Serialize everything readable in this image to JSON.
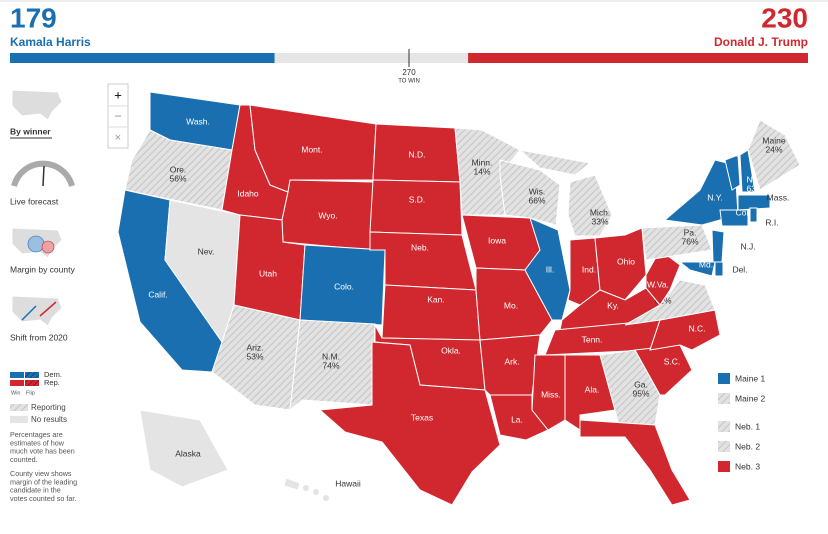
{
  "header": {
    "dem": {
      "votes": 179,
      "name": "Kamala Harris",
      "color": "#1a6fb0"
    },
    "rep": {
      "votes": 230,
      "name": "Donald J. Trump",
      "color": "#d0282e"
    },
    "win": {
      "votes": 270,
      "label": "TO WIN"
    }
  },
  "views": [
    "By winner",
    "Live forecast",
    "Margin by county",
    "Shift from 2020"
  ],
  "controls": [
    "+",
    "−",
    "×"
  ],
  "colors": {
    "dem": "#1a6fb0",
    "rep": "#d0282e",
    "none": "#e4e4e4"
  },
  "legend": {
    "dem": "Dem.",
    "rep": "Rep.",
    "win": "Win",
    "flip": "Flip",
    "reporting": "Reporting",
    "no_results": "No results"
  },
  "notes": [
    [
      "Percentages are",
      "estimates of how",
      "much vote has been",
      "counted."
    ],
    [
      "County view shows",
      "margin of the leading",
      "candidate in the",
      "votes counted so far."
    ]
  ],
  "states": [
    {
      "label": "Wash.",
      "status": "dem"
    },
    {
      "label": "Ore.",
      "pct": "56%",
      "status": "reporting"
    },
    {
      "label": "Calif.",
      "status": "dem"
    },
    {
      "label": "Nev.",
      "status": "none"
    },
    {
      "label": "Idaho",
      "status": "rep"
    },
    {
      "label": "Mont.",
      "status": "rep"
    },
    {
      "label": "Wyo.",
      "status": "rep"
    },
    {
      "label": "Utah",
      "status": "rep"
    },
    {
      "label": "Colo.",
      "status": "dem"
    },
    {
      "label": "Ariz.",
      "pct": "53%",
      "status": "reporting"
    },
    {
      "label": "N.M.",
      "pct": "74%",
      "status": "reporting"
    },
    {
      "label": "N.D.",
      "status": "rep"
    },
    {
      "label": "S.D.",
      "status": "rep"
    },
    {
      "label": "Neb.",
      "status": "rep"
    },
    {
      "label": "Kan.",
      "status": "rep"
    },
    {
      "label": "Okla.",
      "status": "rep"
    },
    {
      "label": "Texas",
      "status": "rep"
    },
    {
      "label": "Minn.",
      "pct": "14%",
      "status": "reporting"
    },
    {
      "label": "Iowa",
      "status": "rep"
    },
    {
      "label": "Mo.",
      "status": "rep"
    },
    {
      "label": "Ark.",
      "status": "rep"
    },
    {
      "label": "La.",
      "status": "rep"
    },
    {
      "label": "Wis.",
      "pct": "66%",
      "status": "reporting"
    },
    {
      "label": "Ill.",
      "status": "dem"
    },
    {
      "label": "Mich.",
      "pct": "33%",
      "status": "reporting"
    },
    {
      "label": "Ind.",
      "status": "rep"
    },
    {
      "label": "Ohio",
      "status": "rep"
    },
    {
      "label": "Ky.",
      "status": "rep"
    },
    {
      "label": "Tenn.",
      "status": "rep"
    },
    {
      "label": "Miss.",
      "status": "rep"
    },
    {
      "label": "Ala.",
      "status": "rep"
    },
    {
      "label": "Ga.",
      "pct": "95%",
      "status": "reporting"
    },
    {
      "label": "Fla.",
      "status": "rep"
    },
    {
      "label": "S.C.",
      "status": "rep"
    },
    {
      "label": "N.C.",
      "status": "rep"
    },
    {
      "label": "Va.",
      "pct": "62%",
      "status": "reporting"
    },
    {
      "label": "W.Va.",
      "status": "rep"
    },
    {
      "label": "Pa.",
      "pct": "76%",
      "status": "reporting"
    },
    {
      "label": "N.Y.",
      "status": "dem"
    },
    {
      "label": "N.J.",
      "status": "dem"
    },
    {
      "label": "Md.",
      "status": "dem"
    },
    {
      "label": "Del.",
      "status": "dem"
    },
    {
      "label": "Vt.",
      "status": "dem"
    },
    {
      "label": "N.H.",
      "pct": "63%",
      "status": "dem"
    },
    {
      "label": "Maine",
      "pct": "24%",
      "status": "reporting"
    },
    {
      "label": "Mass.",
      "status": "dem"
    },
    {
      "label": "Conn.",
      "status": "dem"
    },
    {
      "label": "R.I.",
      "status": "dem"
    },
    {
      "label": "Alaska",
      "status": "none"
    },
    {
      "label": "Hawaii",
      "status": "none"
    }
  ],
  "districts": [
    {
      "label": "Maine 1",
      "status": "dem"
    },
    {
      "label": "Maine 2",
      "status": "reporting"
    },
    {
      "label": "Neb. 1",
      "status": "reporting"
    },
    {
      "label": "Neb. 2",
      "status": "reporting"
    },
    {
      "label": "Neb. 3",
      "status": "rep"
    }
  ]
}
